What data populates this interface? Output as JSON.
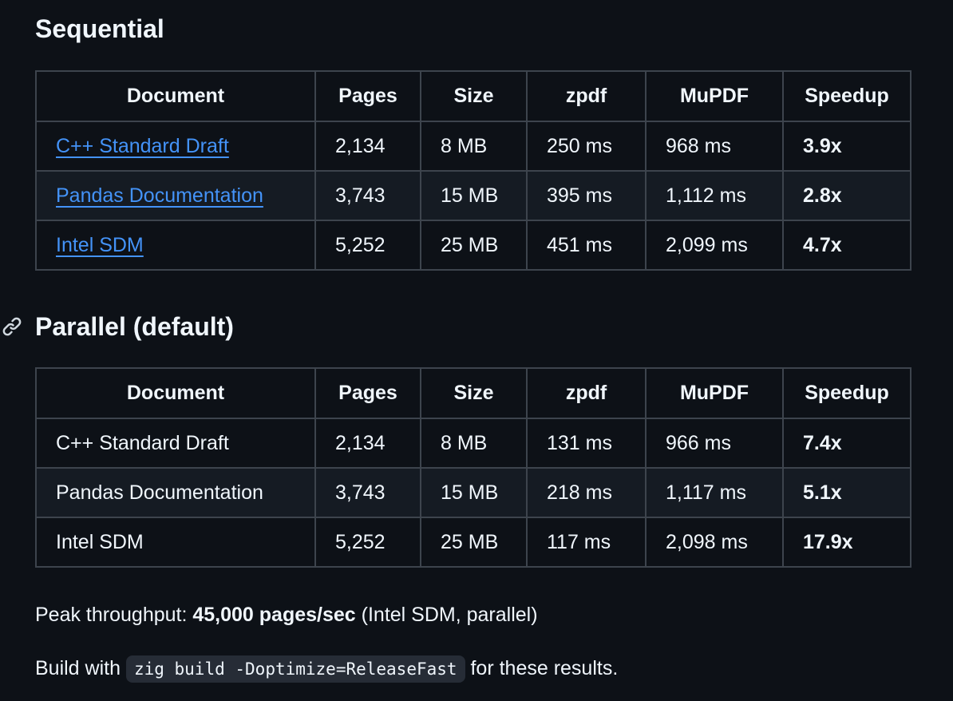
{
  "sequential": {
    "heading": "Sequential",
    "columns": [
      "Document",
      "Pages",
      "Size",
      "zpdf",
      "MuPDF",
      "Speedup"
    ],
    "rows": [
      {
        "document": "C++ Standard Draft",
        "pages": "2,134",
        "size": "8 MB",
        "zpdf": "250 ms",
        "mupdf": "968 ms",
        "speedup": "3.9x"
      },
      {
        "document": "Pandas Documentation",
        "pages": "3,743",
        "size": "15 MB",
        "zpdf": "395 ms",
        "mupdf": "1,112 ms",
        "speedup": "2.8x"
      },
      {
        "document": "Intel SDM",
        "pages": "5,252",
        "size": "25 MB",
        "zpdf": "451 ms",
        "mupdf": "2,099 ms",
        "speedup": "4.7x"
      }
    ]
  },
  "parallel": {
    "heading": "Parallel (default)",
    "columns": [
      "Document",
      "Pages",
      "Size",
      "zpdf",
      "MuPDF",
      "Speedup"
    ],
    "rows": [
      {
        "document": "C++ Standard Draft",
        "pages": "2,134",
        "size": "8 MB",
        "zpdf": "131 ms",
        "mupdf": "966 ms",
        "speedup": "7.4x"
      },
      {
        "document": "Pandas Documentation",
        "pages": "3,743",
        "size": "15 MB",
        "zpdf": "218 ms",
        "mupdf": "1,117 ms",
        "speedup": "5.1x"
      },
      {
        "document": "Intel SDM",
        "pages": "5,252",
        "size": "25 MB",
        "zpdf": "117 ms",
        "mupdf": "2,098 ms",
        "speedup": "17.9x"
      }
    ]
  },
  "peak": {
    "prefix": "Peak throughput: ",
    "value": "45,000 pages/sec",
    "suffix": " (Intel SDM, parallel)"
  },
  "build": {
    "prefix": "Build with ",
    "command": "zig build -Doptimize=ReleaseFast",
    "suffix": " for these results."
  },
  "icons": {
    "anchor": "link-icon"
  },
  "colors": {
    "background": "#0d1117",
    "text": "#f0f6fc",
    "link": "#4493f8",
    "border": "#3d444d",
    "row_alt": "#151b23",
    "code_bg": "#262c36"
  }
}
